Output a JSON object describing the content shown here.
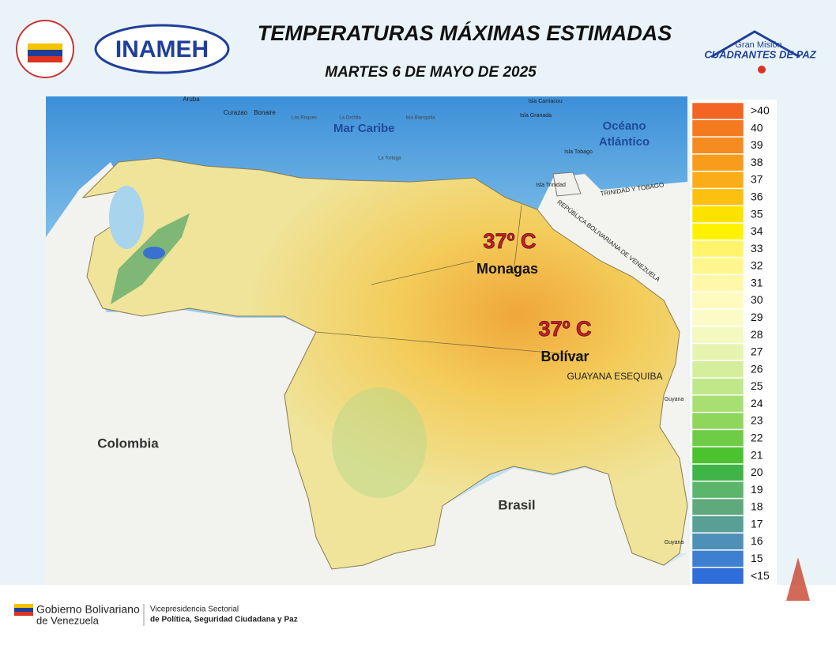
{
  "header": {
    "title": "TEMPERATURAS MÁXIMAS ESTIMADAS",
    "subtitle": "MARTES 6 DE MAYO DE 2025",
    "logo_left": "INAMEH",
    "logo_right_top": "Gran Misión",
    "logo_right": "CUADRANTES DE PAZ"
  },
  "map": {
    "labels": [
      "Mar Caribe",
      "Océano Atlántico",
      "Colombia",
      "Brasil",
      "GUAYANA ESEQUIBA",
      "TRINIDAD Y TOBAGO",
      "REPÚBLICA BOLIVARIANA DE VENEZUELA",
      "Aruba",
      "Curazao",
      "Bonaire",
      "Isla Carriacou",
      "Isla Granada",
      "Isla Tobago",
      "Isla Trinidad",
      "Los Roques",
      "La Orchila",
      "Isla Blanquilla",
      "La Tortuga",
      "Guyana",
      "Guyana"
    ],
    "highlights": [
      {
        "temp": "37º C",
        "region": "Monagas"
      },
      {
        "temp": "37º C",
        "region": "Bolívar"
      }
    ]
  },
  "legend": {
    "items": [
      {
        "label": ">40",
        "color": "#f26522"
      },
      {
        "label": "40",
        "color": "#f47a20"
      },
      {
        "label": "39",
        "color": "#f68b1f"
      },
      {
        "label": "38",
        "color": "#f89c1c"
      },
      {
        "label": "37",
        "color": "#faad19"
      },
      {
        "label": "36",
        "color": "#fcc010"
      },
      {
        "label": "35",
        "color": "#fde200"
      },
      {
        "label": "34",
        "color": "#fff200"
      },
      {
        "label": "33",
        "color": "#fff46b"
      },
      {
        "label": "32",
        "color": "#fff68f"
      },
      {
        "label": "31",
        "color": "#fff8a8"
      },
      {
        "label": "30",
        "color": "#fffabd"
      },
      {
        "label": "29",
        "color": "#fbfbc8"
      },
      {
        "label": "28",
        "color": "#f4f9c0"
      },
      {
        "label": "27",
        "color": "#e6f4b0"
      },
      {
        "label": "26",
        "color": "#d4ee9c"
      },
      {
        "label": "25",
        "color": "#c0e88a"
      },
      {
        "label": "24",
        "color": "#a8df72"
      },
      {
        "label": "23",
        "color": "#8ed65c"
      },
      {
        "label": "22",
        "color": "#6fcc46"
      },
      {
        "label": "21",
        "color": "#4cc22e"
      },
      {
        "label": "20",
        "color": "#3fb548"
      },
      {
        "label": "19",
        "color": "#5bb56a"
      },
      {
        "label": "18",
        "color": "#5eaa7d"
      },
      {
        "label": "17",
        "color": "#5a9f96"
      },
      {
        "label": "16",
        "color": "#4f90b8"
      },
      {
        "label": "15",
        "color": "#3d7fd0"
      },
      {
        "label": "<15",
        "color": "#2f6ed8"
      }
    ]
  },
  "footer": {
    "gov_line1": "Gobierno Bolivariano",
    "gov_line2": "de Venezuela",
    "vice_line1": "Vicepresidencia Sectorial",
    "vice_line2": "de Política, Seguridad Ciudadana y Paz"
  }
}
